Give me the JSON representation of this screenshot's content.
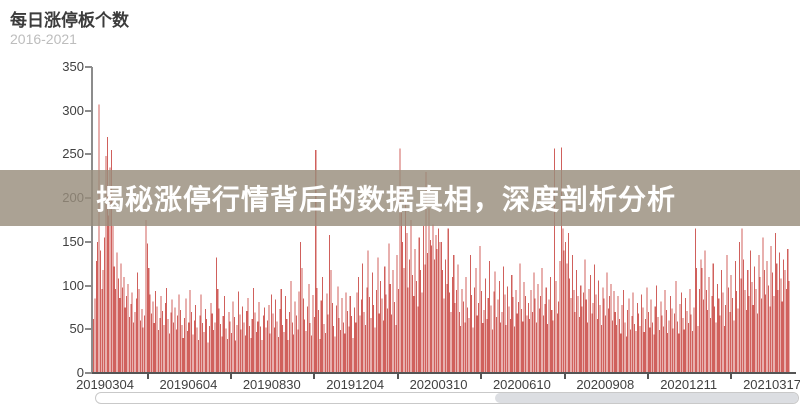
{
  "header": {
    "title": "每日涨停板个数",
    "subtitle": "2016-2021"
  },
  "banner": {
    "text": "揭秘涨停行情背后的数据真相，深度剖析分析",
    "bg_color": "rgba(153,141,125,0.82)",
    "text_color": "#ffffff"
  },
  "chart_data": {
    "type": "bar",
    "title": "每日涨停板个数",
    "subtitle": "2016-2021",
    "xlabel": "",
    "ylabel": "",
    "ylim": [
      0,
      350
    ],
    "grid": false,
    "legend": false,
    "bar_color": "#d0605c",
    "axis_color": "#8c8c8c",
    "y_ticks": [
      0,
      50,
      100,
      150,
      200,
      250,
      300,
      350
    ],
    "x_tick_labels": [
      "20190304",
      "20190604",
      "20190830",
      "20191204",
      "20200310",
      "20200610",
      "20200908",
      "20201211",
      "20210317"
    ],
    "values": [
      62,
      85,
      128,
      150,
      307,
      140,
      96,
      118,
      155,
      248,
      270,
      180,
      235,
      255,
      168,
      122,
      96,
      138,
      108,
      86,
      125,
      98,
      110,
      75,
      88,
      102,
      64,
      79,
      92,
      58,
      70,
      85,
      115,
      96,
      60,
      73,
      52,
      66,
      175,
      148,
      120,
      90,
      68,
      82,
      57,
      94,
      76,
      49,
      63,
      88,
      71,
      55,
      80,
      97,
      62,
      45,
      69,
      84,
      58,
      75,
      50,
      66,
      90,
      72,
      55,
      40,
      63,
      85,
      48,
      58,
      95,
      70,
      44,
      60,
      78,
      52,
      38,
      66,
      90,
      57,
      47,
      73,
      62,
      35,
      54,
      80,
      68,
      49,
      58,
      132,
      96,
      74,
      56,
      42,
      65,
      88,
      51,
      39,
      70,
      59,
      46,
      82,
      64,
      37,
      55,
      93,
      67,
      50,
      76,
      58,
      43,
      71,
      86,
      54,
      40,
      62,
      97,
      69,
      47,
      59,
      81,
      53,
      38,
      66,
      75,
      52,
      60,
      78,
      45,
      90,
      68,
      52,
      84,
      59,
      41,
      73,
      96,
      55,
      47,
      88,
      62,
      38,
      70,
      105,
      58,
      44,
      82,
      66,
      50,
      93,
      150,
      120,
      85,
      61,
      48,
      76,
      102,
      57,
      43,
      89,
      64,
      255,
      97,
      72,
      39,
      83,
      110,
      56,
      46,
      91,
      67,
      158,
      118,
      80,
      54,
      42,
      77,
      99,
      63,
      49,
      86,
      58,
      45,
      92,
      71,
      53,
      88,
      65,
      40,
      75,
      58,
      92,
      110,
      66,
      84,
      125,
      70,
      55,
      98,
      140,
      87,
      63,
      115,
      78,
      52,
      95,
      132,
      68,
      105,
      85,
      60,
      122,
      90,
      74,
      148,
      102,
      67,
      118,
      81,
      55,
      135,
      96,
      257,
      185,
      150,
      120,
      210,
      160,
      98,
      130,
      175,
      112,
      88,
      142,
      105,
      76,
      155,
      118,
      92,
      168,
      124,
      230,
      137,
      188,
      152,
      146,
      170,
      130,
      158,
      142,
      165,
      150,
      150,
      118,
      85,
      130,
      102,
      165,
      92,
      70,
      110,
      135,
      80,
      95,
      124,
      70,
      54,
      96,
      82,
      58,
      110,
      75,
      63,
      135,
      89,
      52,
      98,
      120,
      66,
      80,
      145,
      94,
      57,
      72,
      108,
      62,
      86,
      128,
      77,
      50,
      93,
      116,
      64,
      84,
      105,
      58,
      70,
      122,
      90,
      55,
      99,
      76,
      62,
      112,
      87,
      53,
      95,
      68,
      81,
      125,
      73,
      59,
      104,
      88,
      66,
      80,
      62,
      95,
      70,
      115,
      85,
      58,
      102,
      74,
      88,
      120,
      66,
      79,
      98,
      56,
      84,
      110,
      72,
      60,
      257,
      105,
      68,
      82,
      128,
      258,
      165,
      140,
      150,
      125,
      160,
      108,
      86,
      135,
      95,
      70,
      118,
      88,
      64,
      100,
      76,
      92,
      130,
      84,
      58,
      96,
      112,
      68,
      80,
      124,
      90,
      62,
      106,
      78,
      55,
      98,
      85,
      66,
      115,
      74,
      88,
      102,
      60,
      94,
      70,
      55,
      88,
      62,
      45,
      78,
      95,
      58,
      42,
      72,
      85,
      50,
      65,
      92,
      56,
      48,
      80,
      68,
      54,
      90,
      75,
      47,
      62,
      98,
      70,
      52,
      84,
      58,
      44,
      76,
      100,
      64,
      49,
      82,
      66,
      53,
      95,
      72,
      46,
      60,
      88,
      74,
      51,
      68,
      105,
      59,
      45,
      79,
      92,
      63,
      50,
      86,
      71,
      57,
      96,
      67,
      48,
      75,
      165,
      120,
      54,
      96,
      130,
      120,
      84,
      140,
      95,
      72,
      110,
      63,
      88,
      125,
      76,
      58,
      102,
      85,
      66,
      118,
      92,
      54,
      78,
      135,
      98,
      70,
      112,
      86,
      60,
      128,
      94,
      74,
      150,
      108,
      165,
      130,
      95,
      72,
      118,
      88,
      140,
      104,
      78,
      122,
      96,
      68,
      135,
      110,
      85,
      155,
      118,
      90,
      128,
      100,
      76,
      145,
      115,
      88,
      160,
      125,
      95,
      138,
      108,
      82,
      130,
      118,
      96,
      142,
      105
    ]
  },
  "scrollbar": {
    "thumb_color": "#dcdee2",
    "track_border_color": "#c9c9c9"
  }
}
